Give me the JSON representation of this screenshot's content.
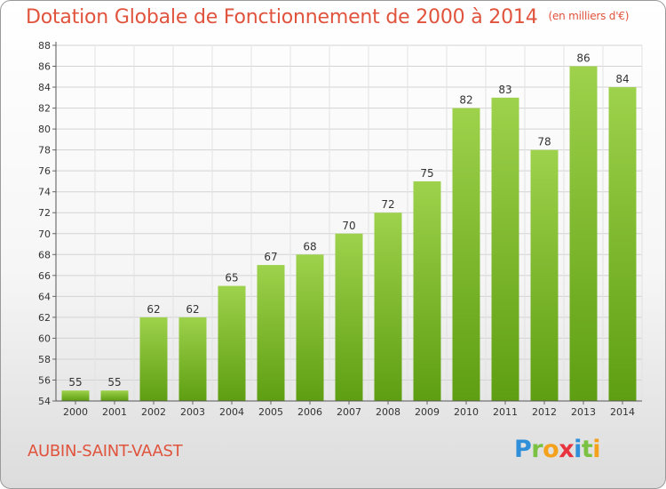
{
  "title": "Dotation Globale de Fonctionnement de 2000 à 2014",
  "unit": "(en milliers d'€)",
  "commune": "AUBIN-SAINT-VAAST",
  "logo": {
    "letters": [
      {
        "char": "P",
        "color": "#2f8fd8"
      },
      {
        "char": "r",
        "color": "#7cc242"
      },
      {
        "char": "o",
        "color": "#f4a11c"
      },
      {
        "char": "x",
        "color": "#e8343f"
      },
      {
        "char": "i",
        "color": "#2f8fd8"
      },
      {
        "char": "t",
        "color": "#7cc242"
      },
      {
        "char": "i",
        "color": "#f4a11c"
      }
    ]
  },
  "colors": {
    "title": "#e0533c",
    "bar_light": "#9ed24c",
    "bar_dark": "#5e9e12",
    "grid": "#d3d3d3"
  },
  "chart_data": {
    "type": "bar",
    "categories": [
      "2000",
      "2001",
      "2002",
      "2003",
      "2004",
      "2005",
      "2006",
      "2007",
      "2008",
      "2009",
      "2010",
      "2011",
      "2012",
      "2013",
      "2014"
    ],
    "values": [
      55,
      55,
      62,
      62,
      65,
      67,
      68,
      70,
      72,
      75,
      82,
      83,
      78,
      86,
      84
    ],
    "title": "Dotation Globale de Fonctionnement de 2000 à 2014",
    "ylim": [
      54,
      88
    ],
    "yticks": [
      54,
      56,
      58,
      60,
      62,
      64,
      66,
      68,
      70,
      72,
      74,
      76,
      78,
      80,
      82,
      84,
      86,
      88
    ],
    "grid": true,
    "data_labels": true
  }
}
